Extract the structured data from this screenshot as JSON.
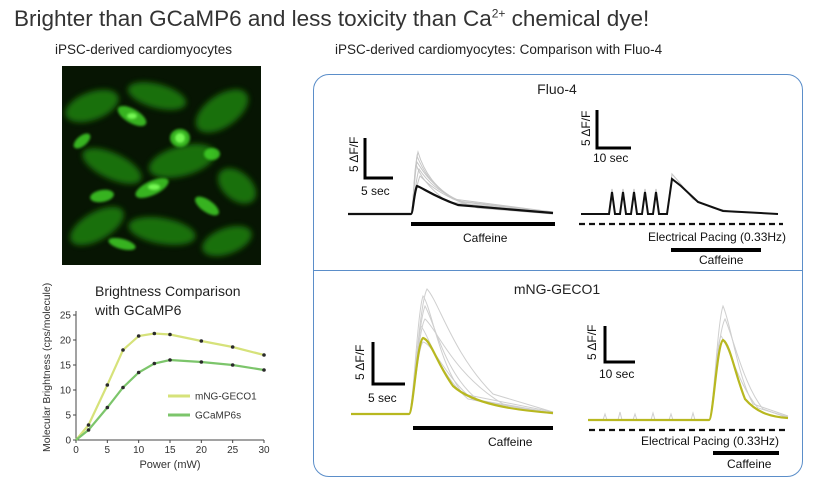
{
  "slide": {
    "title_main": "Brighter than GCaMP6 and less toxicity than Ca",
    "title_sup": "2+",
    "title_tail": " chemical dye!"
  },
  "left_panel": {
    "heading": "iPSC-derived cardiomyocytes"
  },
  "right_panel": {
    "heading": "iPSC-derived cardiomyocytes: Comparison with Fluo-4",
    "fluo4": {
      "title": "Fluo-4",
      "scale_left_y": "5 ΔF/F",
      "scale_left_x": "5 sec",
      "scale_right_y": "5 ΔF/F",
      "scale_right_x": "10 sec",
      "bar_left_label": "Caffeine",
      "pacing_label": "Electrical Pacing (0.33Hz)",
      "bar_right_label": "Caffeine",
      "trace_color": "#111111"
    },
    "mng": {
      "title": "mNG-GECO1",
      "scale_left_y": "5 ΔF/F",
      "scale_left_x": "5 sec",
      "scale_right_y": "5 ΔF/F",
      "scale_right_x": "10 sec",
      "bar_left_label": "Caffeine",
      "pacing_label": "Electrical Pacing (0.33Hz)",
      "bar_right_label": "Caffeine",
      "trace_color": "#b8b820"
    }
  },
  "chart_data": {
    "type": "line",
    "title": "Brightness Comparison with GCaMP6",
    "xlabel": "Power (mW)",
    "ylabel": "Molecular Brightness (cps/molecule)",
    "xlim": [
      0,
      30
    ],
    "ylim": [
      0,
      25
    ],
    "xticks": [
      "0",
      "5",
      "10",
      "15",
      "20",
      "25",
      "30"
    ],
    "yticks": [
      "0",
      "5",
      "10",
      "15",
      "20",
      "25"
    ],
    "legend_position": "lower-right",
    "grid": false,
    "series": [
      {
        "name": "mNG-GECO1",
        "color": "#d6e27a",
        "x": [
          0,
          2,
          5,
          7.5,
          10,
          12.5,
          15,
          20,
          25,
          30
        ],
        "y": [
          0,
          3,
          11,
          18,
          20.8,
          21.3,
          21.1,
          19.8,
          18.6,
          17
        ]
      },
      {
        "name": "GCaMP6s",
        "color": "#7cc56b",
        "x": [
          0,
          2,
          5,
          7.5,
          10,
          12.5,
          15,
          20,
          25,
          30
        ],
        "y": [
          0,
          2,
          6.5,
          10.5,
          13.5,
          15.3,
          16,
          15.6,
          15,
          14
        ]
      }
    ]
  }
}
